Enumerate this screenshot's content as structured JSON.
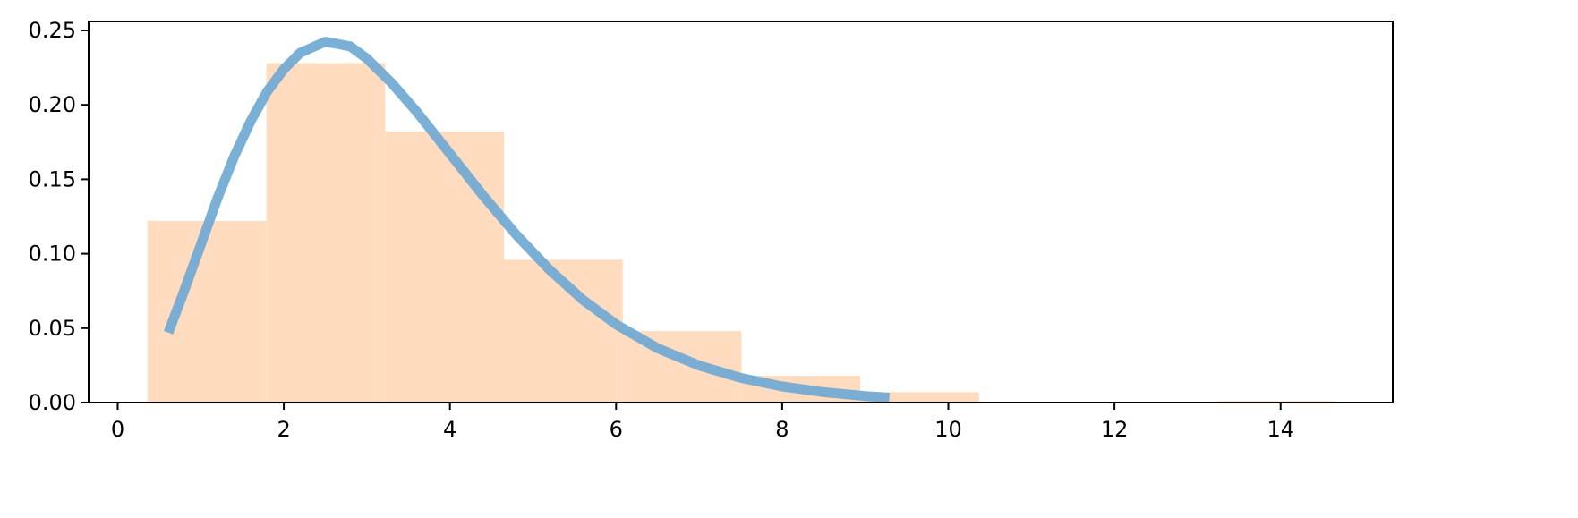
{
  "chart_data": {
    "type": "bar",
    "xlim": [
      -0.35,
      15.35
    ],
    "ylim": [
      0,
      0.256
    ],
    "x_ticks": [
      0,
      2,
      4,
      6,
      8,
      10,
      12,
      14
    ],
    "y_ticks": [
      0.0,
      0.05,
      0.1,
      0.15,
      0.2,
      0.25
    ],
    "x_tick_labels": [
      "0",
      "2",
      "4",
      "6",
      "8",
      "10",
      "12",
      "14"
    ],
    "y_tick_labels": [
      "0.00",
      "0.05",
      "0.10",
      "0.15",
      "0.20",
      "0.25"
    ],
    "grid": false,
    "legend": "none",
    "series": [
      {
        "type": "histogram",
        "color": "#ffdcbf",
        "bins": [
          {
            "x0": 0.36,
            "x1": 1.79,
            "value": 0.122
          },
          {
            "x0": 1.79,
            "x1": 3.22,
            "value": 0.228
          },
          {
            "x0": 3.22,
            "x1": 4.65,
            "value": 0.182
          },
          {
            "x0": 4.65,
            "x1": 6.08,
            "value": 0.096
          },
          {
            "x0": 6.08,
            "x1": 7.51,
            "value": 0.048
          },
          {
            "x0": 7.51,
            "x1": 8.94,
            "value": 0.018
          },
          {
            "x0": 8.94,
            "x1": 10.37,
            "value": 0.007
          },
          {
            "x0": 10.37,
            "x1": 11.8,
            "value": 0.0
          },
          {
            "x0": 11.8,
            "x1": 13.23,
            "value": 0.0
          },
          {
            "x0": 13.23,
            "x1": 14.66,
            "value": 0.001
          }
        ]
      },
      {
        "type": "line",
        "color": "#6fa8d2",
        "x": [
          0.61,
          0.8,
          1.0,
          1.2,
          1.4,
          1.6,
          1.8,
          2.0,
          2.2,
          2.5,
          2.8,
          3.0,
          3.3,
          3.6,
          4.0,
          4.4,
          4.8,
          5.2,
          5.6,
          6.0,
          6.5,
          7.0,
          7.5,
          8.0,
          8.5,
          9.0,
          9.29
        ],
        "y": [
          0.047,
          0.075,
          0.106,
          0.137,
          0.165,
          0.189,
          0.209,
          0.224,
          0.235,
          0.2424,
          0.2393,
          0.2311,
          0.2146,
          0.1953,
          0.1672,
          0.139,
          0.1126,
          0.0891,
          0.069,
          0.0525,
          0.0365,
          0.0249,
          0.0166,
          0.0108,
          0.007,
          0.0044,
          0.0033
        ]
      }
    ]
  }
}
